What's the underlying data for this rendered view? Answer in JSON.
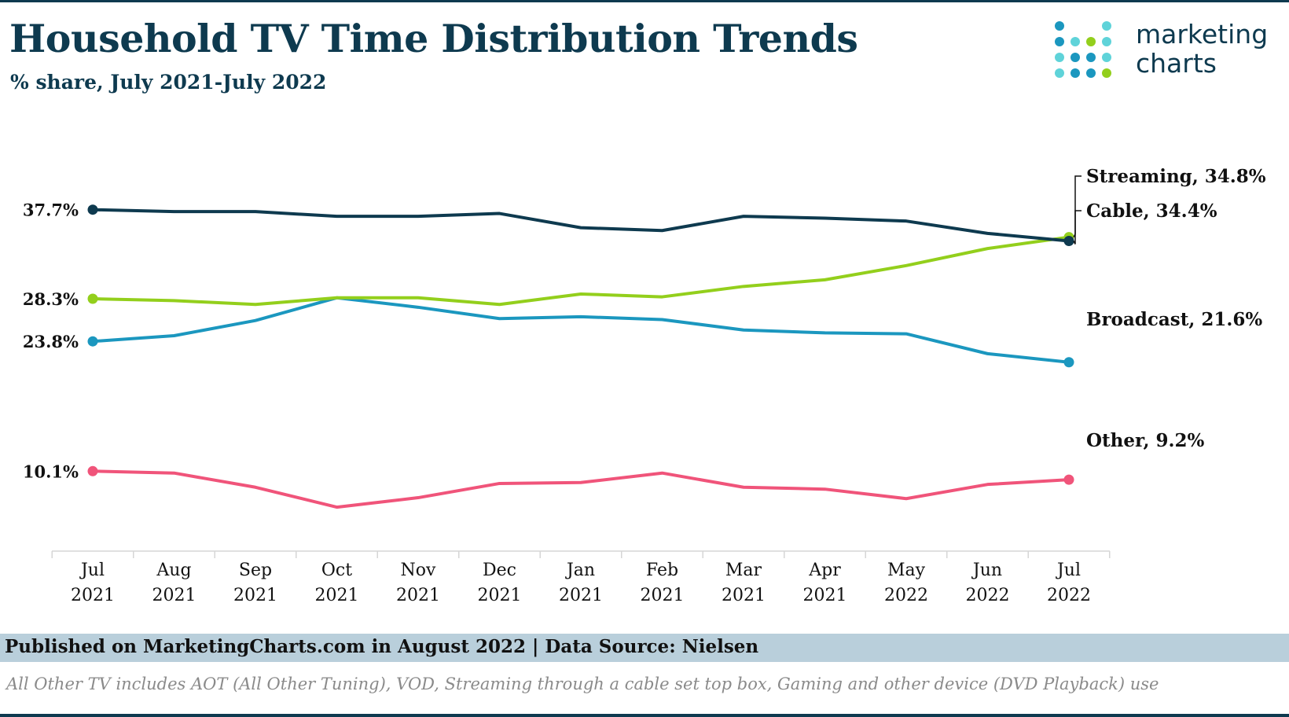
{
  "header": {
    "title": "Household TV Time Distribution Trends",
    "subtitle": "% share, July 2021-July 2022"
  },
  "logo": {
    "line1": "marketing",
    "line2": "charts"
  },
  "footer": {
    "published": "Published on MarketingCharts.com in August 2022 | Data Source: Nielsen",
    "note": "All Other TV includes AOT (All Other Tuning), VOD, Streaming through a cable set top box, Gaming and other device (DVD Playback) use"
  },
  "colors": {
    "cable": "#0e3a4f",
    "streaming": "#93cf1c",
    "broadcast": "#1b97bf",
    "other": "#f0547a",
    "footer_bar": "#b9cfdb",
    "title": "#0e3a4f"
  },
  "chart_data": {
    "type": "line",
    "title": "Household TV Time Distribution Trends",
    "subtitle": "% share, July 2021-July 2022",
    "x_labels": [
      [
        "Jul",
        "2021"
      ],
      [
        "Aug",
        "2021"
      ],
      [
        "Sep",
        "2021"
      ],
      [
        "Oct",
        "2021"
      ],
      [
        "Nov",
        "2021"
      ],
      [
        "Dec",
        "2021"
      ],
      [
        "Jan",
        "2021"
      ],
      [
        "Feb",
        "2021"
      ],
      [
        "Mar",
        "2021"
      ],
      [
        "Apr",
        "2021"
      ],
      [
        "May",
        "2022"
      ],
      [
        "Jun",
        "2022"
      ],
      [
        "Jul",
        "2022"
      ]
    ],
    "ylim": [
      0,
      40
    ],
    "grid": false,
    "y_axis_visible": false,
    "series": [
      {
        "name": "Cable",
        "color": "#0e3a4f",
        "values": [
          37.7,
          37.5,
          37.5,
          37.0,
          37.0,
          37.3,
          35.8,
          35.5,
          37.0,
          36.8,
          36.5,
          35.2,
          34.4
        ],
        "start_label": "37.7%",
        "end_label": "Cable, 34.4%"
      },
      {
        "name": "Streaming",
        "color": "#93cf1c",
        "values": [
          28.3,
          28.1,
          27.7,
          28.4,
          28.4,
          27.7,
          28.8,
          28.5,
          29.6,
          30.3,
          31.8,
          33.6,
          34.8
        ],
        "start_label": "28.3%",
        "end_label": "Streaming, 34.8%"
      },
      {
        "name": "Broadcast",
        "color": "#1b97bf",
        "values": [
          23.8,
          24.4,
          26.0,
          28.4,
          27.4,
          26.2,
          26.4,
          26.1,
          25.0,
          24.7,
          24.6,
          22.5,
          21.6
        ],
        "start_label": "23.8%",
        "end_label": "Broadcast, 21.6%"
      },
      {
        "name": "Other",
        "color": "#f0547a",
        "values": [
          10.1,
          9.9,
          8.4,
          6.3,
          7.3,
          8.8,
          8.9,
          9.9,
          8.4,
          8.2,
          7.2,
          8.7,
          9.2
        ],
        "start_label": "10.1%",
        "end_label": "Other, 9.2%"
      }
    ]
  }
}
